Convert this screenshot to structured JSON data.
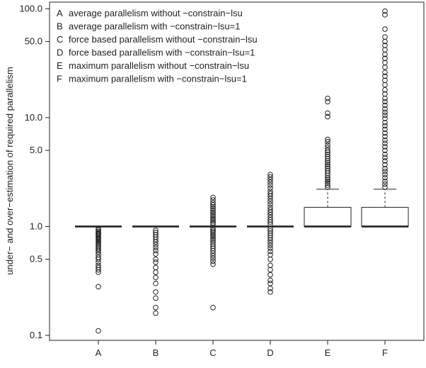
{
  "chart_data": {
    "type": "boxplot",
    "title": "",
    "xlabel": "",
    "ylabel": "under− and over−estimation of required parallelism",
    "y_scale": "log",
    "ylim": [
      0.09,
      115
    ],
    "y_ticks": [
      {
        "value": 0.1,
        "label": "0.1"
      },
      {
        "value": 0.5,
        "label": "0.5"
      },
      {
        "value": 1.0,
        "label": "1.0"
      },
      {
        "value": 5.0,
        "label": "5.0"
      },
      {
        "value": 10.0,
        "label": "10.0"
      },
      {
        "value": 50.0,
        "label": "50.0"
      },
      {
        "value": 100.0,
        "label": "100.0"
      }
    ],
    "legend_position": "top-left",
    "categories": [
      "A",
      "B",
      "C",
      "D",
      "E",
      "F"
    ],
    "legend": [
      {
        "key": "A",
        "text": "average parallelism without −constrain−lsu"
      },
      {
        "key": "B",
        "text": "average parallelism with −constrain−lsu=1"
      },
      {
        "key": "C",
        "text": "force based parallelism without −constrain−lsu"
      },
      {
        "key": "D",
        "text": "force based parallelism with −constrain−lsu=1"
      },
      {
        "key": "E",
        "text": "maximum parallelism without −constrain−lsu"
      },
      {
        "key": "F",
        "text": "maximum parallelism with −constrain−lsu=1"
      }
    ],
    "series": [
      {
        "category": "A",
        "box": {
          "q1": 1.0,
          "median": 1.0,
          "q3": 1.0,
          "whisker_low": 1.0,
          "whisker_high": 1.0
        },
        "outliers": [
          0.95,
          0.93,
          0.9,
          0.88,
          0.86,
          0.85,
          0.84,
          0.82,
          0.8,
          0.78,
          0.76,
          0.74,
          0.72,
          0.7,
          0.68,
          0.66,
          0.64,
          0.62,
          0.6,
          0.58,
          0.55,
          0.52,
          0.5,
          0.47,
          0.44,
          0.42,
          0.4,
          0.38,
          0.28,
          0.11
        ]
      },
      {
        "category": "B",
        "box": {
          "q1": 1.0,
          "median": 1.0,
          "q3": 1.0,
          "whisker_low": 1.0,
          "whisker_high": 1.0
        },
        "outliers": [
          0.92,
          0.88,
          0.84,
          0.8,
          0.76,
          0.72,
          0.68,
          0.64,
          0.6,
          0.56,
          0.5,
          0.47,
          0.42,
          0.38,
          0.34,
          0.3,
          0.25,
          0.22,
          0.18,
          0.16
        ]
      },
      {
        "category": "C",
        "box": {
          "q1": 1.0,
          "median": 1.0,
          "q3": 1.0,
          "whisker_low": 1.0,
          "whisker_high": 1.0
        },
        "outliers": [
          1.85,
          1.75,
          1.65,
          1.58,
          1.52,
          1.46,
          1.4,
          1.35,
          1.3,
          1.25,
          1.2,
          1.16,
          1.12,
          1.08,
          1.05,
          0.96,
          0.93,
          0.9,
          0.87,
          0.84,
          0.81,
          0.78,
          0.75,
          0.72,
          0.69,
          0.66,
          0.63,
          0.6,
          0.57,
          0.54,
          0.51,
          0.48,
          0.45,
          0.18
        ]
      },
      {
        "category": "D",
        "box": {
          "q1": 1.0,
          "median": 1.0,
          "q3": 1.0,
          "whisker_low": 1.0,
          "whisker_high": 1.0
        },
        "outliers": [
          3.0,
          2.85,
          2.7,
          2.55,
          2.4,
          2.25,
          2.1,
          2.0,
          1.9,
          1.8,
          1.7,
          1.6,
          1.5,
          1.42,
          1.35,
          1.28,
          1.21,
          1.15,
          1.1,
          1.05,
          0.95,
          0.91,
          0.87,
          0.83,
          0.79,
          0.75,
          0.71,
          0.67,
          0.63,
          0.59,
          0.55,
          0.5,
          0.44,
          0.4,
          0.36,
          0.32,
          0.3,
          0.27,
          0.25
        ]
      },
      {
        "category": "E",
        "box": {
          "q1": 1.0,
          "median": 1.0,
          "q3": 1.5,
          "whisker_low": 1.0,
          "whisker_high": 2.2
        },
        "outliers": [
          15.0,
          14.0,
          11.0,
          10.2,
          6.3,
          6.0,
          5.6,
          5.3,
          5.0,
          4.8,
          4.6,
          4.4,
          4.2,
          4.0,
          3.85,
          3.7,
          3.55,
          3.4,
          3.25,
          3.1,
          2.95,
          2.8,
          2.7,
          2.6,
          2.5,
          2.4,
          2.3
        ]
      },
      {
        "category": "F",
        "box": {
          "q1": 1.0,
          "median": 1.0,
          "q3": 1.5,
          "whisker_low": 1.0,
          "whisker_high": 2.2
        },
        "outliers": [
          95.0,
          88.0,
          65.0,
          55.0,
          50.0,
          46.0,
          42.0,
          38.0,
          35.0,
          32.0,
          29.0,
          26.0,
          24.0,
          22.0,
          20.0,
          18.0,
          16.5,
          15.0,
          14.0,
          13.0,
          12.0,
          11.2,
          10.5,
          9.8,
          9.0,
          8.4,
          7.8,
          7.2,
          6.7,
          6.2,
          5.8,
          5.4,
          5.0,
          4.6,
          4.3,
          4.0,
          3.7,
          3.4,
          3.2,
          3.0,
          2.8,
          2.6,
          2.45,
          2.3
        ]
      }
    ]
  }
}
